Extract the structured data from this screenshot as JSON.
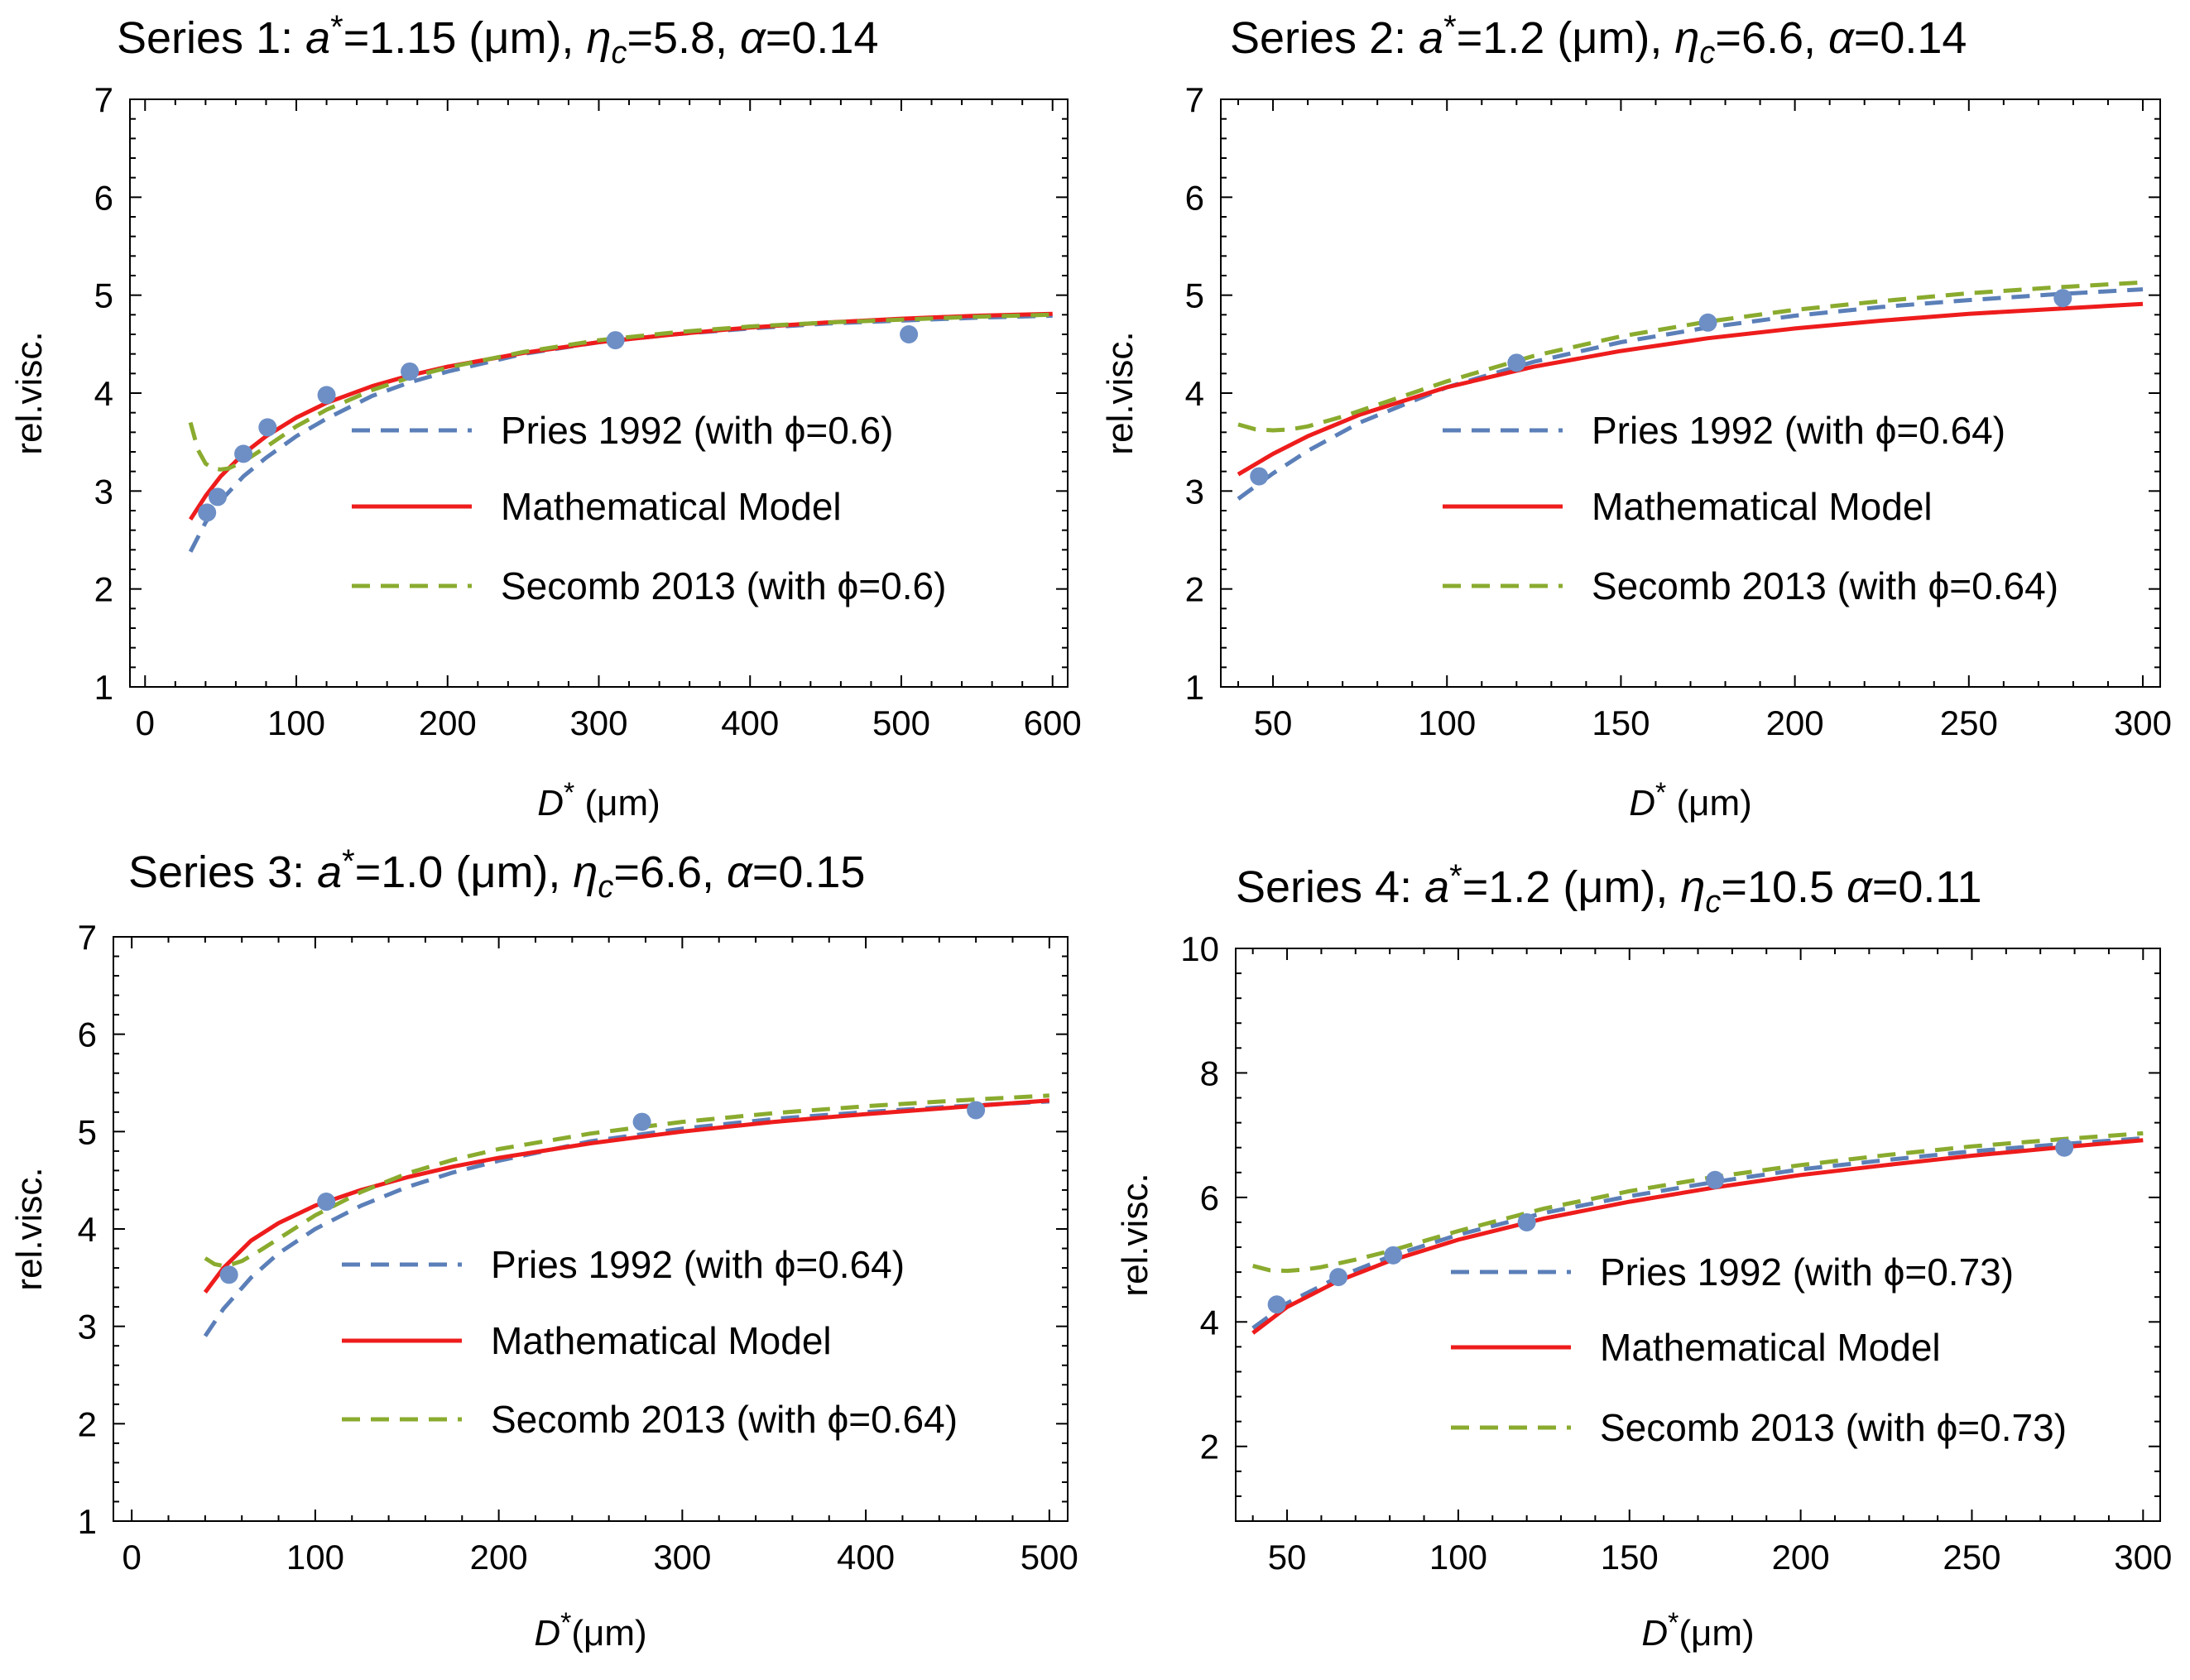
{
  "colors": {
    "pries": "#5b7fb8",
    "model": "#ee1c1c",
    "secomb": "#8aab2e",
    "point": "#6d8fc6"
  },
  "chart_data": [
    {
      "type": "line",
      "title_text": {
        "prefix": "Series 1:",
        "a": "1.15",
        "unit": "(μm),",
        "eta": "5.8,",
        "alpha": "0.14"
      },
      "ylabel": "rel.visc.",
      "xlabel": "D* (μm)",
      "xlim": [
        -10,
        610
      ],
      "ylim": [
        1,
        7
      ],
      "xticks": [
        0,
        100,
        200,
        300,
        400,
        500,
        600
      ],
      "yticks": [
        1,
        2,
        3,
        4,
        5,
        6,
        7
      ],
      "legend": {
        "pries": "Pries 1992 (with ϕ=0.6)",
        "model": "Mathematical Model",
        "secomb": "Secomb 2013 (with ϕ=0.6)"
      },
      "series": [
        {
          "name": "Pries 1992",
          "x": [
            30,
            40,
            50,
            65,
            80,
            100,
            120,
            150,
            175,
            200,
            250,
            300,
            350,
            400,
            450,
            500,
            550,
            600
          ],
          "y": [
            2.38,
            2.68,
            2.9,
            3.15,
            3.34,
            3.56,
            3.74,
            3.97,
            4.11,
            4.22,
            4.4,
            4.52,
            4.6,
            4.66,
            4.71,
            4.74,
            4.77,
            4.79
          ]
        },
        {
          "name": "Mathematical Model",
          "x": [
            30,
            40,
            50,
            65,
            80,
            100,
            120,
            150,
            175,
            200,
            250,
            300,
            350,
            400,
            450,
            500,
            550,
            600
          ],
          "y": [
            2.71,
            2.95,
            3.15,
            3.38,
            3.56,
            3.75,
            3.9,
            4.07,
            4.18,
            4.27,
            4.41,
            4.52,
            4.6,
            4.67,
            4.72,
            4.76,
            4.79,
            4.81
          ]
        },
        {
          "name": "Secomb 2013",
          "x": [
            30,
            35,
            40,
            45,
            50,
            55,
            65,
            80,
            100,
            120,
            150,
            175,
            200,
            250,
            300,
            350,
            400,
            450,
            500,
            550,
            600
          ],
          "y": [
            3.7,
            3.42,
            3.28,
            3.23,
            3.22,
            3.23,
            3.3,
            3.45,
            3.66,
            3.83,
            4.03,
            4.16,
            4.26,
            4.42,
            4.54,
            4.62,
            4.68,
            4.72,
            4.75,
            4.78,
            4.8
          ]
        },
        {
          "name": "data",
          "x": [
            41,
            48,
            65,
            81,
            120,
            175,
            311,
            505
          ],
          "y": [
            2.78,
            2.94,
            3.38,
            3.65,
            3.98,
            4.22,
            4.54,
            4.6
          ]
        }
      ]
    },
    {
      "type": "line",
      "title_text": {
        "prefix": "Series 2:",
        "a": "1.2",
        "unit": "(μm),",
        "eta": "6.6,",
        "alpha": "0.14"
      },
      "ylabel": "rel.visc.",
      "xlabel": "D* (μm)",
      "xlim": [
        35,
        305
      ],
      "ylim": [
        1,
        7
      ],
      "xticks": [
        50,
        100,
        150,
        200,
        250,
        300
      ],
      "yticks": [
        1,
        2,
        3,
        4,
        5,
        6,
        7
      ],
      "legend": {
        "pries": "Pries 1992 (with ϕ=0.64)",
        "model": "Mathematical Model",
        "secomb": "Secomb 2013 (with ϕ=0.64)"
      },
      "series": [
        {
          "name": "Pries 1992",
          "x": [
            40,
            50,
            60,
            75,
            100,
            125,
            150,
            175,
            200,
            225,
            250,
            275,
            300
          ],
          "y": [
            2.92,
            3.18,
            3.41,
            3.7,
            4.06,
            4.32,
            4.52,
            4.67,
            4.79,
            4.88,
            4.95,
            5.01,
            5.06
          ]
        },
        {
          "name": "Mathematical Model",
          "x": [
            40,
            50,
            60,
            75,
            100,
            125,
            150,
            175,
            200,
            225,
            250,
            275,
            300
          ],
          "y": [
            3.17,
            3.38,
            3.56,
            3.78,
            4.06,
            4.27,
            4.43,
            4.56,
            4.66,
            4.74,
            4.81,
            4.86,
            4.91
          ]
        },
        {
          "name": "Secomb 2013",
          "x": [
            40,
            45,
            50,
            55,
            60,
            70,
            80,
            100,
            125,
            150,
            175,
            200,
            225,
            250,
            275,
            300
          ],
          "y": [
            3.68,
            3.63,
            3.62,
            3.63,
            3.66,
            3.76,
            3.88,
            4.12,
            4.38,
            4.58,
            4.73,
            4.85,
            4.94,
            5.02,
            5.08,
            5.13
          ]
        },
        {
          "name": "data",
          "x": [
            46,
            120,
            175,
            277
          ],
          "y": [
            3.15,
            4.31,
            4.72,
            4.97
          ]
        }
      ]
    },
    {
      "type": "line",
      "title_text": {
        "prefix": "Series 3:",
        "a": "1.0",
        "unit": "(μm),",
        "eta": "6.6,",
        "alpha": "0.15"
      },
      "ylabel": "rel.visc.",
      "xlabel": "D*(μm)",
      "xlim": [
        -10,
        510
      ],
      "ylim": [
        1,
        7
      ],
      "xticks": [
        0,
        100,
        200,
        300,
        400,
        500
      ],
      "yticks": [
        1,
        2,
        3,
        4,
        5,
        6,
        7
      ],
      "legend": {
        "pries": "Pries 1992 (with ϕ=0.64)",
        "model": "Mathematical Model",
        "secomb": "Secomb 2013 (with ϕ=0.64)"
      },
      "series": [
        {
          "name": "Pries 1992",
          "x": [
            40,
            50,
            65,
            80,
            100,
            125,
            150,
            175,
            200,
            250,
            300,
            350,
            400,
            450,
            500
          ],
          "y": [
            2.9,
            3.18,
            3.5,
            3.75,
            4.0,
            4.24,
            4.43,
            4.58,
            4.7,
            4.9,
            5.03,
            5.13,
            5.2,
            5.26,
            5.31
          ]
        },
        {
          "name": "Mathematical Model",
          "x": [
            40,
            50,
            65,
            80,
            100,
            125,
            150,
            175,
            200,
            250,
            300,
            350,
            400,
            450,
            500
          ],
          "y": [
            3.35,
            3.6,
            3.88,
            4.06,
            4.24,
            4.4,
            4.53,
            4.64,
            4.73,
            4.88,
            5.0,
            5.1,
            5.18,
            5.25,
            5.32
          ]
        },
        {
          "name": "Secomb 2013",
          "x": [
            40,
            45,
            50,
            55,
            60,
            70,
            80,
            100,
            125,
            150,
            175,
            200,
            250,
            300,
            350,
            400,
            450,
            500
          ],
          "y": [
            3.7,
            3.64,
            3.62,
            3.64,
            3.67,
            3.78,
            3.9,
            4.14,
            4.38,
            4.57,
            4.71,
            4.82,
            4.98,
            5.1,
            5.19,
            5.26,
            5.32,
            5.37
          ]
        },
        {
          "name": "data",
          "x": [
            53,
            106,
            278,
            460
          ],
          "y": [
            3.53,
            4.28,
            5.1,
            5.22
          ]
        }
      ]
    },
    {
      "type": "line",
      "title_text": {
        "prefix": "Series 4:",
        "a": "1.2",
        "unit": "(μm),",
        "eta": "10.5",
        "alpha": "0.11"
      },
      "ylabel": "rel.visc.",
      "xlabel": "D*(μm)",
      "xlim": [
        35,
        305
      ],
      "ylim": [
        0.8,
        10
      ],
      "xticks": [
        50,
        100,
        150,
        200,
        250,
        300
      ],
      "yticks": [
        2,
        4,
        6,
        8,
        10
      ],
      "legend": {
        "pries": "Pries 1992 (with ϕ=0.73)",
        "model": "Mathematical Model",
        "secomb": "Secomb 2013 (with ϕ=0.73)"
      },
      "series": [
        {
          "name": "Pries 1992",
          "x": [
            40,
            50,
            65,
            80,
            100,
            125,
            150,
            175,
            200,
            225,
            250,
            275,
            300
          ],
          "y": [
            3.9,
            4.3,
            4.72,
            5.05,
            5.4,
            5.75,
            6.02,
            6.25,
            6.45,
            6.6,
            6.74,
            6.85,
            6.95
          ]
        },
        {
          "name": "Mathematical Model",
          "x": [
            40,
            50,
            65,
            80,
            100,
            125,
            150,
            175,
            200,
            225,
            250,
            275,
            300
          ],
          "y": [
            3.82,
            4.24,
            4.66,
            4.98,
            5.32,
            5.66,
            5.93,
            6.16,
            6.36,
            6.52,
            6.67,
            6.8,
            6.92
          ]
        },
        {
          "name": "Secomb 2013",
          "x": [
            40,
            45,
            50,
            55,
            60,
            70,
            80,
            100,
            125,
            150,
            175,
            200,
            225,
            250,
            275,
            300
          ],
          "y": [
            4.9,
            4.83,
            4.82,
            4.84,
            4.88,
            5.0,
            5.14,
            5.46,
            5.82,
            6.1,
            6.33,
            6.52,
            6.68,
            6.82,
            6.93,
            7.03
          ]
        },
        {
          "name": "data",
          "x": [
            47,
            65,
            81,
            120,
            175,
            277
          ],
          "y": [
            4.28,
            4.72,
            5.07,
            5.6,
            6.28,
            6.8
          ]
        }
      ]
    }
  ]
}
